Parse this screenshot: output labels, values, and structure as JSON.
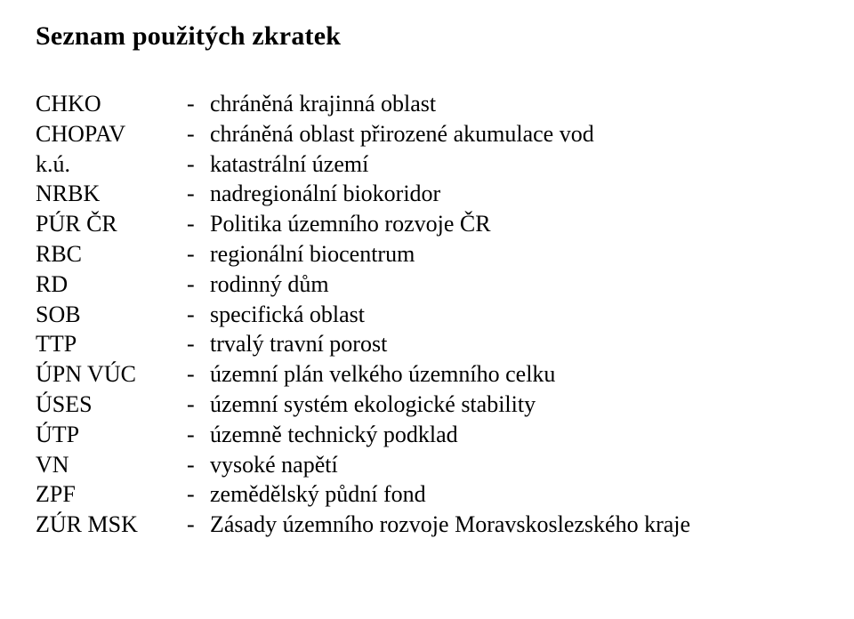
{
  "title": "Seznam použitých zkratek",
  "dash": "-",
  "text_color": "#000000",
  "background_color": "#ffffff",
  "font_family": "Times New Roman",
  "title_fontsize_pt": 22,
  "body_fontsize_pt": 19,
  "rows": [
    {
      "abbr": "CHKO",
      "desc": "chráněná krajinná oblast"
    },
    {
      "abbr": "CHOPAV",
      "desc": "chráněná oblast přirozené akumulace vod"
    },
    {
      "abbr": "k.ú.",
      "desc": "katastrální území"
    },
    {
      "abbr": "NRBK",
      "desc": "nadregionální biokoridor"
    },
    {
      "abbr": "PÚR ČR",
      "desc": "Politika územního rozvoje ČR"
    },
    {
      "abbr": "RBC",
      "desc": "regionální biocentrum"
    },
    {
      "abbr": "RD",
      "desc": "rodinný dům"
    },
    {
      "abbr": "SOB",
      "desc": "specifická oblast"
    },
    {
      "abbr": "TTP",
      "desc": "trvalý travní porost"
    },
    {
      "abbr": "ÚPN VÚC",
      "desc": "územní plán velkého územního celku"
    },
    {
      "abbr": "ÚSES",
      "desc": "územní systém ekologické stability"
    },
    {
      "abbr": "ÚTP",
      "desc": "územně technický podklad"
    },
    {
      "abbr": "VN",
      "desc": "vysoké napětí"
    },
    {
      "abbr": "ZPF",
      "desc": "zemědělský půdní fond"
    },
    {
      "abbr": "ZÚR MSK",
      "desc": "Zásady územního rozvoje Moravskoslezského kraje"
    }
  ]
}
